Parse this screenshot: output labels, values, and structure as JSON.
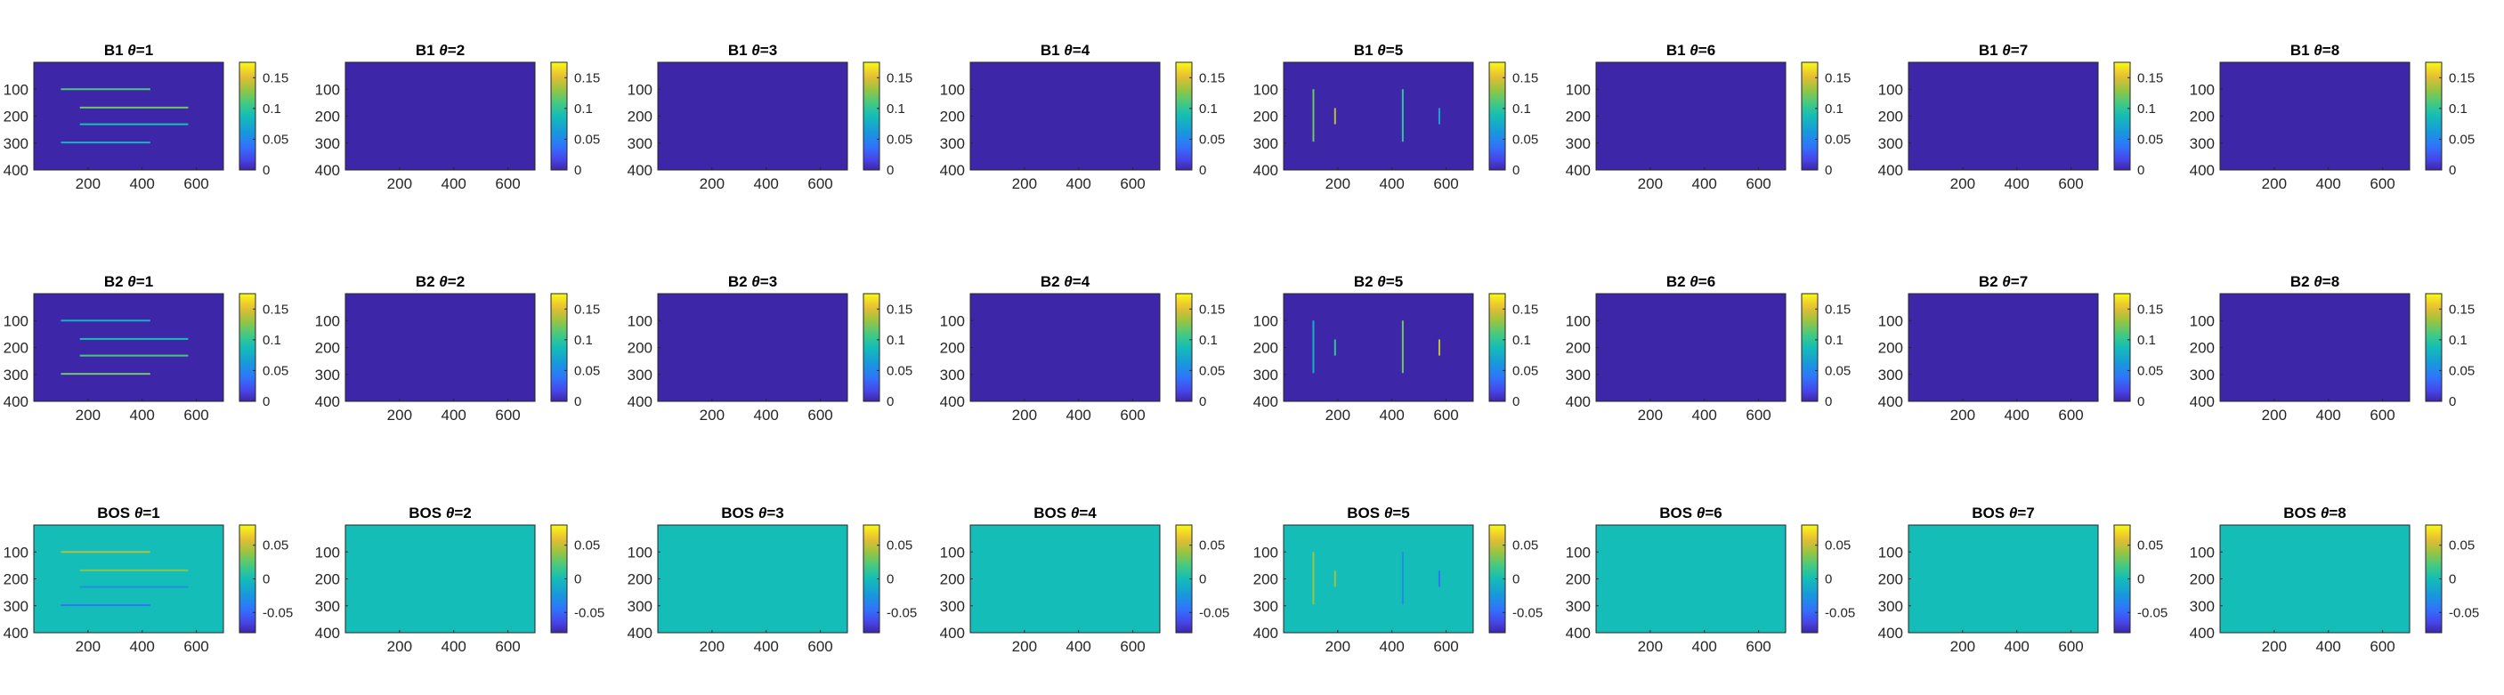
{
  "figure": {
    "columns": 8,
    "row_titles": [
      "B1",
      "B2",
      "BOS"
    ],
    "theta_symbol": "θ",
    "theta_eq": "=",
    "theta_values": [
      "1",
      "2",
      "3",
      "4",
      "5",
      "6",
      "7",
      "8"
    ]
  },
  "chart_data": {
    "type": "heatmap",
    "xticks": [
      "200",
      "400",
      "600"
    ],
    "yticks": [
      "100",
      "200",
      "300",
      "400"
    ],
    "x_tick_values": [
      200,
      400,
      600
    ],
    "y_tick_values": [
      100,
      200,
      300,
      400
    ],
    "xlim": [
      0,
      700
    ],
    "ylim": [
      0,
      400
    ],
    "y_reversed": true,
    "rows": [
      {
        "name": "B1",
        "clim": [
          0,
          0.175
        ],
        "colorbar_ticks": [
          "0.15",
          "0.1",
          "0.05",
          "0"
        ],
        "colorbar_tick_values": [
          0.15,
          0.1,
          0.05,
          0
        ],
        "background_value": 0.0,
        "panels": {
          "1": [
            {
              "x1": 100,
              "y1": 100,
              "x2": 430,
              "y2": 100,
              "v": 0.11
            },
            {
              "x1": 170,
              "y1": 168,
              "x2": 570,
              "y2": 168,
              "v": 0.12
            },
            {
              "x1": 170,
              "y1": 230,
              "x2": 570,
              "y2": 230,
              "v": 0.09
            },
            {
              "x1": 100,
              "y1": 298,
              "x2": 430,
              "y2": 298,
              "v": 0.08
            }
          ],
          "5": [
            {
              "x1": 110,
              "y1": 100,
              "x2": 110,
              "y2": 295,
              "v": 0.12
            },
            {
              "x1": 190,
              "y1": 170,
              "x2": 190,
              "y2": 230,
              "v": 0.14
            },
            {
              "x1": 440,
              "y1": 100,
              "x2": 440,
              "y2": 295,
              "v": 0.1
            },
            {
              "x1": 575,
              "y1": 170,
              "x2": 575,
              "y2": 230,
              "v": 0.07
            }
          ]
        }
      },
      {
        "name": "B2",
        "clim": [
          0,
          0.175
        ],
        "colorbar_ticks": [
          "0.15",
          "0.1",
          "0.05",
          "0"
        ],
        "colorbar_tick_values": [
          0.15,
          0.1,
          0.05,
          0
        ],
        "background_value": 0.0,
        "panels": {
          "1": [
            {
              "x1": 100,
              "y1": 100,
              "x2": 430,
              "y2": 100,
              "v": 0.08
            },
            {
              "x1": 170,
              "y1": 168,
              "x2": 570,
              "y2": 168,
              "v": 0.09
            },
            {
              "x1": 170,
              "y1": 230,
              "x2": 570,
              "y2": 230,
              "v": 0.11
            },
            {
              "x1": 100,
              "y1": 298,
              "x2": 430,
              "y2": 298,
              "v": 0.12
            }
          ],
          "5": [
            {
              "x1": 110,
              "y1": 100,
              "x2": 110,
              "y2": 295,
              "v": 0.08
            },
            {
              "x1": 190,
              "y1": 170,
              "x2": 190,
              "y2": 230,
              "v": 0.1
            },
            {
              "x1": 440,
              "y1": 100,
              "x2": 440,
              "y2": 295,
              "v": 0.12
            },
            {
              "x1": 575,
              "y1": 170,
              "x2": 575,
              "y2": 230,
              "v": 0.14
            }
          ]
        }
      },
      {
        "name": "BOS",
        "clim": [
          -0.08,
          0.08
        ],
        "colorbar_ticks": [
          "0.05",
          "0",
          "-0.05"
        ],
        "colorbar_tick_values": [
          0.05,
          0,
          -0.05
        ],
        "background_value": 0.0,
        "panels": {
          "1": [
            {
              "x1": 100,
              "y1": 100,
              "x2": 430,
              "y2": 100,
              "v": 0.045
            },
            {
              "x1": 170,
              "y1": 168,
              "x2": 570,
              "y2": 168,
              "v": 0.035
            },
            {
              "x1": 170,
              "y1": 230,
              "x2": 570,
              "y2": 230,
              "v": -0.025
            },
            {
              "x1": 100,
              "y1": 298,
              "x2": 430,
              "y2": 298,
              "v": -0.045
            }
          ],
          "5": [
            {
              "x1": 110,
              "y1": 100,
              "x2": 110,
              "y2": 295,
              "v": 0.04
            },
            {
              "x1": 190,
              "y1": 170,
              "x2": 190,
              "y2": 230,
              "v": 0.04
            },
            {
              "x1": 440,
              "y1": 100,
              "x2": 440,
              "y2": 295,
              "v": -0.03
            },
            {
              "x1": 575,
              "y1": 170,
              "x2": 575,
              "y2": 230,
              "v": -0.045
            }
          ]
        }
      }
    ]
  }
}
